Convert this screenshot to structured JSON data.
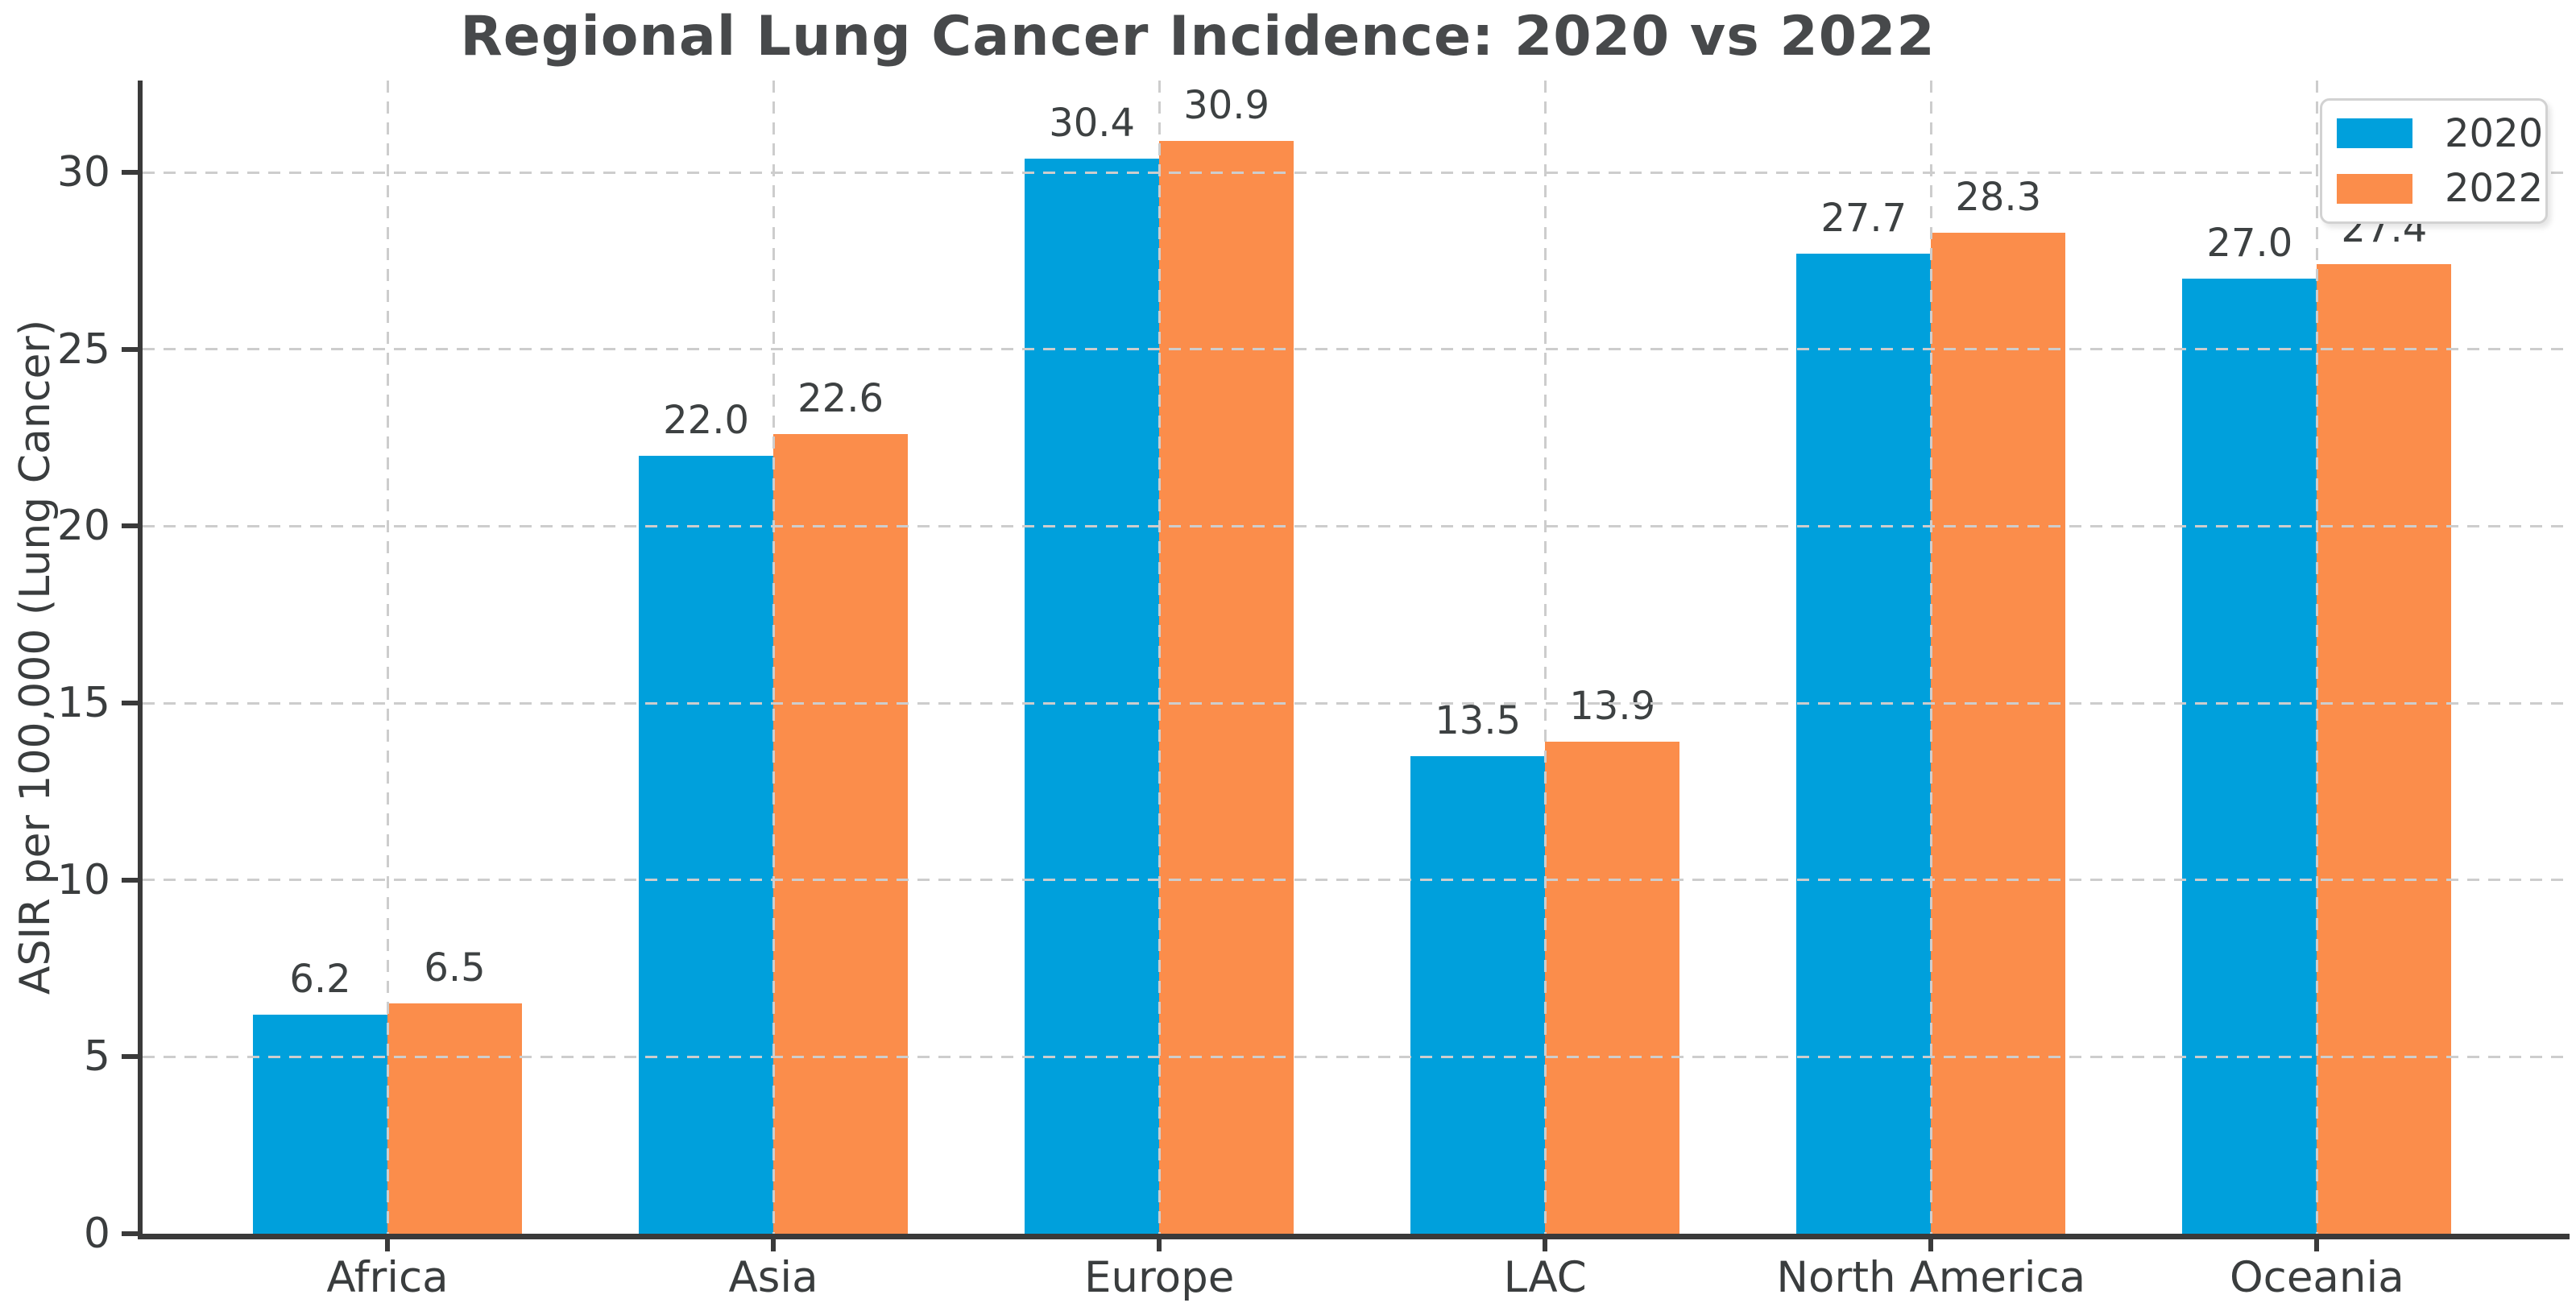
{
  "chart_data": {
    "type": "bar",
    "title": "Regional Lung Cancer Incidence: 2020 vs 2022",
    "categories": [
      "Africa",
      "Asia",
      "Europe",
      "LAC",
      "North America",
      "Oceania"
    ],
    "series": [
      {
        "name": "2020",
        "color": "#00A0DC",
        "values": [
          6.2,
          22.0,
          30.4,
          13.5,
          27.7,
          27.0
        ]
      },
      {
        "name": "2022",
        "color": "#FB8D4B",
        "values": [
          6.5,
          22.6,
          30.9,
          13.9,
          28.3,
          27.4
        ]
      }
    ],
    "xlabel": "",
    "ylabel": "ASIR per 100,000 (Lung Cancer)",
    "ylim": [
      0,
      32.6
    ],
    "yticks": [
      0,
      5,
      10,
      15,
      20,
      25,
      30
    ],
    "grid": true,
    "grid_style": "dashed",
    "value_labels": true,
    "value_label_decimals": 1,
    "legend_position": "upper right",
    "colors": {
      "grid": "#cdcdcd",
      "axis": "#3a3a3a",
      "tick_text": "#3a3d3e",
      "title_text": "#47494b",
      "background": "#ffffff"
    }
  }
}
